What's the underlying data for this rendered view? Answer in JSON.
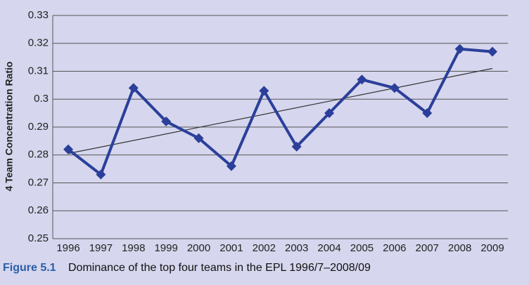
{
  "chart_data": {
    "type": "line",
    "y_label": "4 Team Concentration Ratio",
    "caption_label": "Figure 5.1",
    "caption_text": "Dominance of the top four teams in the EPL 1996/7–2008/09",
    "categories": [
      "1996",
      "1997",
      "1998",
      "1999",
      "2000",
      "2001",
      "2002",
      "2003",
      "2004",
      "2005",
      "2006",
      "2007",
      "2008",
      "2009"
    ],
    "series": [
      {
        "color": "#2b3f9a",
        "values": [
          0.282,
          0.273,
          0.304,
          0.292,
          0.286,
          0.276,
          0.303,
          0.283,
          0.295,
          0.307,
          0.304,
          0.295,
          0.318,
          0.317
        ]
      }
    ],
    "trend_line": {
      "color": "#333333",
      "values": [
        0.2805,
        0.311
      ]
    },
    "ylim": [
      0.25,
      0.33
    ],
    "yticks": [
      0.25,
      0.26,
      0.27,
      0.28,
      0.29,
      0.3,
      0.31,
      0.32,
      0.33
    ],
    "grid": true
  }
}
